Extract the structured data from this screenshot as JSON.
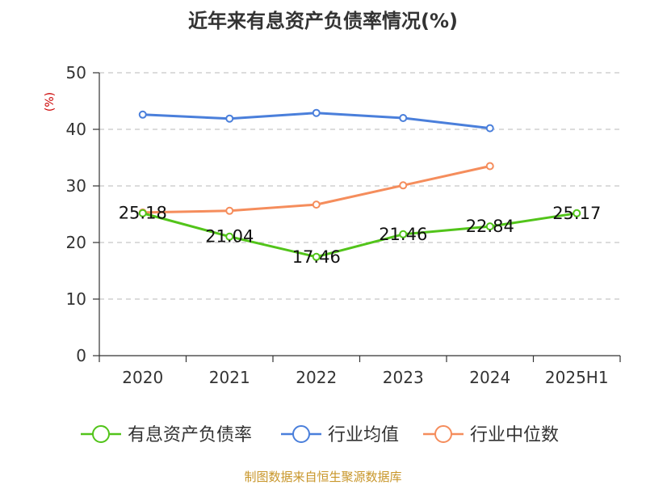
{
  "chart_data": {
    "type": "line",
    "title": "近年来有息资产负债率情况(%)",
    "ylabel": "(%)",
    "categories": [
      "2020",
      "2021",
      "2022",
      "2023",
      "2024",
      "2025H1"
    ],
    "ylim": [
      0,
      50
    ],
    "yticks": [
      0,
      10,
      20,
      30,
      40,
      50
    ],
    "grid": true,
    "legend_position": "bottom",
    "series": [
      {
        "name": "有息资产负债率",
        "color": "#52c41a",
        "values": [
          25.18,
          21.04,
          17.46,
          21.46,
          22.84,
          25.17
        ],
        "labels": [
          "25.18",
          "21.04",
          "17.46",
          "21.46",
          "22.84",
          "25.17"
        ]
      },
      {
        "name": "行业均值",
        "color": "#4a7fdb",
        "values": [
          42.6,
          41.9,
          42.9,
          42.0,
          40.2,
          null
        ]
      },
      {
        "name": "行业中位数",
        "color": "#f58d5c",
        "values": [
          25.3,
          25.6,
          26.7,
          30.1,
          33.5,
          null
        ]
      }
    ],
    "source": "制图数据来自恒生聚源数据库"
  },
  "colors": {
    "axis": "#333333",
    "grid": "#c8c8c8",
    "title": "#333333",
    "ylabel": "#cc0000",
    "source": "#c8962a"
  }
}
